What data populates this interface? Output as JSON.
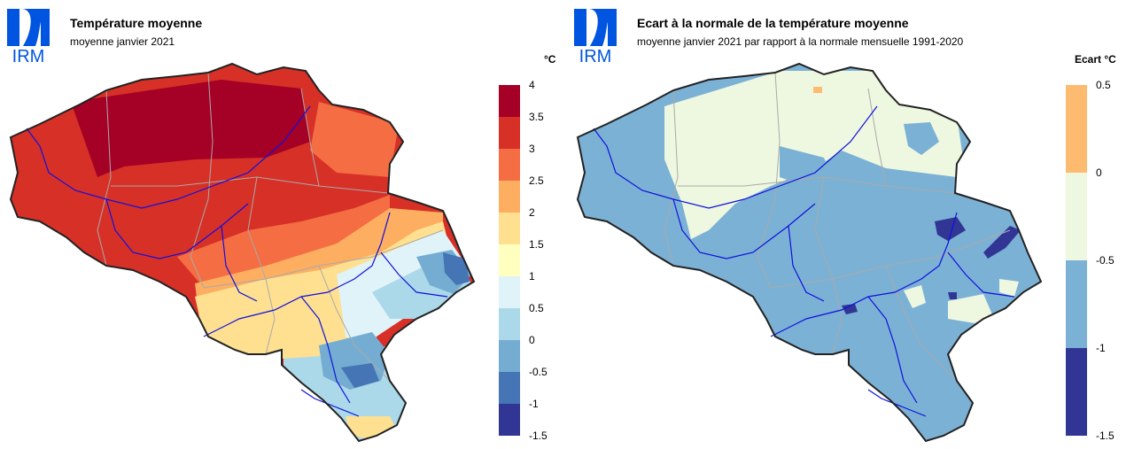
{
  "left": {
    "logo_text": "IRM",
    "title": "Température moyenne",
    "subtitle": "moyenne janvier 2021",
    "unit": "°C",
    "legend": {
      "ticks": [
        "4",
        "3.5",
        "3",
        "2.5",
        "2",
        "1.5",
        "1",
        "0.5",
        "0",
        "-0.5",
        "-1",
        "-1.5"
      ],
      "colors": [
        "#a50026",
        "#d73027",
        "#f46d43",
        "#fdae61",
        "#fee090",
        "#ffffbf",
        "#e0f3f8",
        "#abd9e9",
        "#74add1",
        "#4575b4",
        "#313695"
      ]
    }
  },
  "right": {
    "logo_text": "IRM",
    "title": "Ecart à la normale de la température moyenne",
    "subtitle": "moyenne janvier 2021 par rapport à la normale mensuelle 1991-2020",
    "unit": "Ecart  °C",
    "legend": {
      "ticks": [
        "0.5",
        "0",
        "-0.5",
        "-1",
        "-1.5"
      ],
      "colors": [
        "#fdbb6f",
        "#eef7e0",
        "#7bb1d5",
        "#313695"
      ]
    }
  },
  "colors": {
    "logo_blue": "#0055e0",
    "river": "#1010dd",
    "border": "#222222",
    "province": "#aaaaaa"
  }
}
